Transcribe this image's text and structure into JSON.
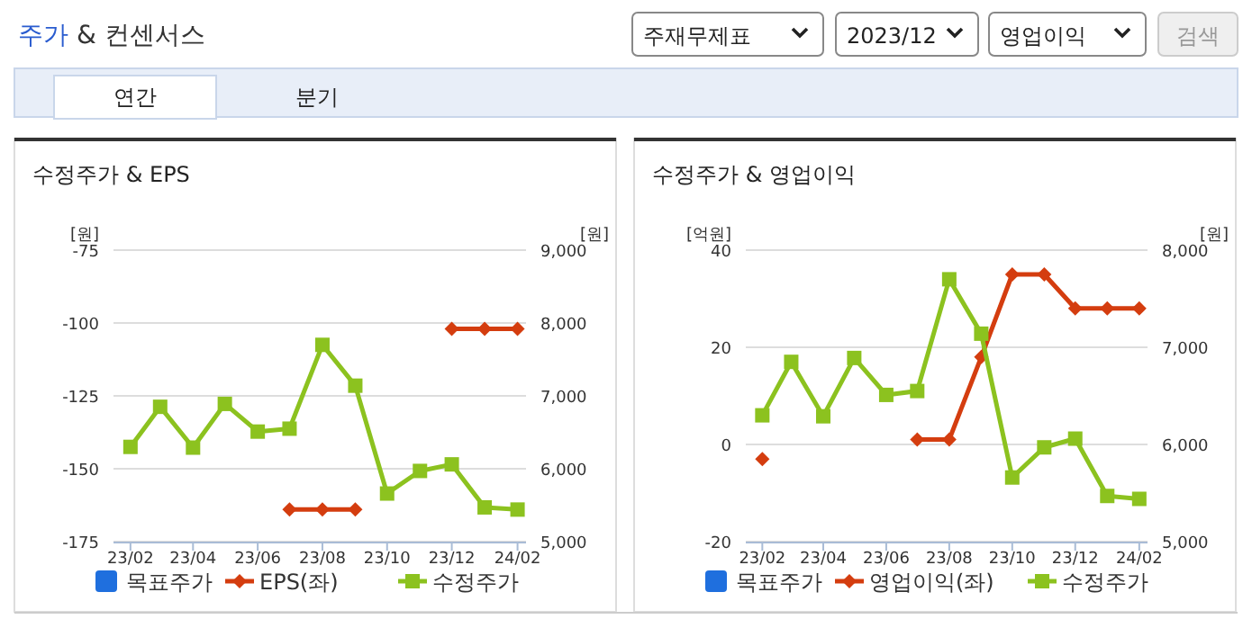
{
  "chart_data": [
    {
      "type": "other",
      "title": "주가 & 컨센서스",
      "annotations": [
        "주재무제표",
        "2023/12",
        "영업이익",
        "검색",
        "연간",
        "분기"
      ]
    },
    {
      "type": "line",
      "title": "수정주가 & EPS",
      "ylabel": "[원]",
      "y2label": "[원]",
      "x": [
        "2023-02",
        "2023-03",
        "2023-04",
        "2023-05",
        "2023-06",
        "2023-07",
        "2023-08",
        "2023-09",
        "2023-10",
        "2023-11",
        "2023-12",
        "2024-01",
        "2024-02"
      ],
      "xlim": [
        "2023-01-16",
        "2024-02-09"
      ],
      "xticks": [
        {
          "value": "2023-02",
          "label": "23/02"
        },
        {
          "value": "2023-04",
          "label": "23/04"
        },
        {
          "value": "2023-06",
          "label": "23/06"
        },
        {
          "value": "2023-08",
          "label": "23/08"
        },
        {
          "value": "2023-10",
          "label": "23/10"
        },
        {
          "value": "2023-12",
          "label": "23/12"
        },
        {
          "value": "2024-02",
          "label": "24/02"
        }
      ],
      "ylim": [
        -175,
        -75
      ],
      "yticks": [
        -175,
        -150,
        -125,
        -100,
        -75
      ],
      "y2lim": [
        5000,
        9000
      ],
      "y2ticks": [
        {
          "value": 5000,
          "label": "5,000"
        },
        {
          "value": 6000,
          "label": "6,000"
        },
        {
          "value": 7000,
          "label": "7,000"
        },
        {
          "value": 8000,
          "label": "8,000"
        },
        {
          "value": 9000,
          "label": "9,000"
        }
      ],
      "grid": "y",
      "legend": "bottom",
      "series": [
        {
          "name": "목표주가",
          "color": "#1f6fde",
          "marker": "square",
          "axis": "y2",
          "values": [
            null,
            null,
            null,
            null,
            null,
            null,
            null,
            null,
            null,
            null,
            null,
            null,
            null
          ]
        },
        {
          "name": "EPS(좌)",
          "color": "#d43d0f",
          "marker": "diamond",
          "axis": "y",
          "values": [
            null,
            null,
            null,
            null,
            null,
            -164,
            -164,
            -164,
            null,
            null,
            -102,
            -102,
            -102
          ]
        },
        {
          "name": "수정주가",
          "color": "#8cc21f",
          "marker": "square",
          "axis": "y2",
          "values": [
            6300,
            6850,
            6290,
            6890,
            6510,
            6550,
            7700,
            7140,
            5660,
            5970,
            6060,
            5470,
            5440
          ]
        }
      ]
    },
    {
      "type": "line",
      "title": "수정주가 & 영업이익",
      "ylabel": "[억원]",
      "y2label": "[원]",
      "x": [
        "2023-02",
        "2023-03",
        "2023-04",
        "2023-05",
        "2023-06",
        "2023-07",
        "2023-08",
        "2023-09",
        "2023-10",
        "2023-11",
        "2023-12",
        "2024-01",
        "2024-02"
      ],
      "xlim": [
        "2023-01-16",
        "2024-02-09"
      ],
      "xticks": [
        {
          "value": "2023-02",
          "label": "23/02"
        },
        {
          "value": "2023-04",
          "label": "23/04"
        },
        {
          "value": "2023-06",
          "label": "23/06"
        },
        {
          "value": "2023-08",
          "label": "23/08"
        },
        {
          "value": "2023-10",
          "label": "23/10"
        },
        {
          "value": "2023-12",
          "label": "23/12"
        },
        {
          "value": "2024-02",
          "label": "24/02"
        }
      ],
      "ylim": [
        -20,
        40
      ],
      "yticks": [
        -20,
        0,
        20,
        40
      ],
      "y2lim": [
        5000,
        8000
      ],
      "y2ticks": [
        {
          "value": 5000,
          "label": "5,000"
        },
        {
          "value": 6000,
          "label": "6,000"
        },
        {
          "value": 7000,
          "label": "7,000"
        },
        {
          "value": 8000,
          "label": "8,000"
        }
      ],
      "grid": "y",
      "legend": "bottom",
      "series": [
        {
          "name": "목표주가",
          "color": "#1f6fde",
          "marker": "square",
          "axis": "y2",
          "values": [
            null,
            null,
            null,
            null,
            null,
            null,
            null,
            null,
            null,
            null,
            null,
            null,
            null
          ]
        },
        {
          "name": "영업이익(좌)",
          "color": "#d43d0f",
          "marker": "diamond",
          "axis": "y",
          "values": [
            -3,
            null,
            null,
            null,
            null,
            1,
            1,
            18,
            35,
            35,
            28,
            28,
            28
          ]
        },
        {
          "name": "수정주가",
          "color": "#8cc21f",
          "marker": "square",
          "axis": "y2",
          "values": [
            6300,
            6850,
            6290,
            6890,
            6510,
            6550,
            7700,
            7140,
            5660,
            5970,
            6060,
            5470,
            5440
          ]
        }
      ]
    }
  ]
}
